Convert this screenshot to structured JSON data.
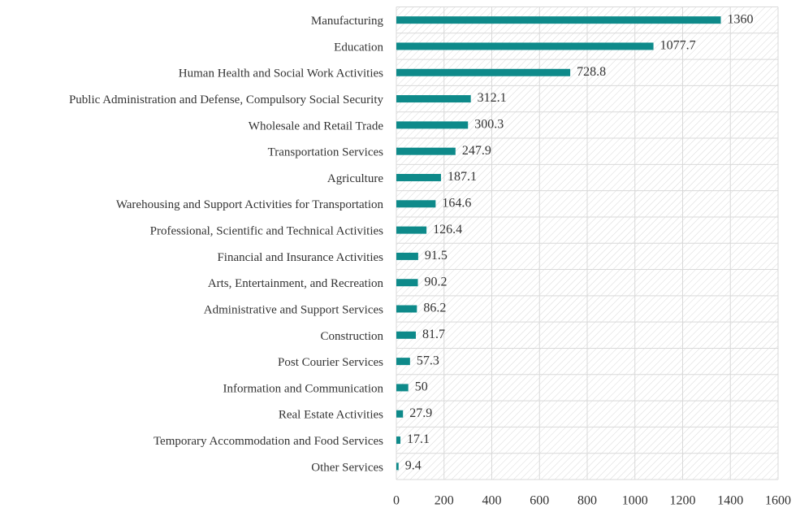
{
  "chart_data": {
    "type": "bar",
    "orientation": "horizontal",
    "categories": [
      "Manufacturing",
      "Education",
      "Human Health and Social Work Activities",
      "Public Administration and Defense, Compulsory Social Security",
      "Wholesale and Retail Trade",
      "Transportation Services",
      "Agriculture",
      "Warehousing and Support Activities for Transportation",
      "Professional, Scientific and Technical Activities",
      "Financial and Insurance Activities",
      "Arts, Entertainment, and Recreation",
      "Administrative and Support Services",
      "Construction",
      "Post Courier Services",
      "Information and Communication",
      "Real Estate Activities",
      "Temporary Accommodation and Food Services",
      "Other Services"
    ],
    "values": [
      1360,
      1077.7,
      728.8,
      312.1,
      300.3,
      247.9,
      187.1,
      164.6,
      126.4,
      91.5,
      90.2,
      86.2,
      81.7,
      57.3,
      50,
      27.9,
      17.1,
      9.4
    ],
    "color": "#0e8a8a",
    "xlim": [
      0,
      1600
    ],
    "xticks": [
      0,
      200,
      400,
      600,
      800,
      1000,
      1200,
      1400,
      1600
    ],
    "grid": true
  }
}
